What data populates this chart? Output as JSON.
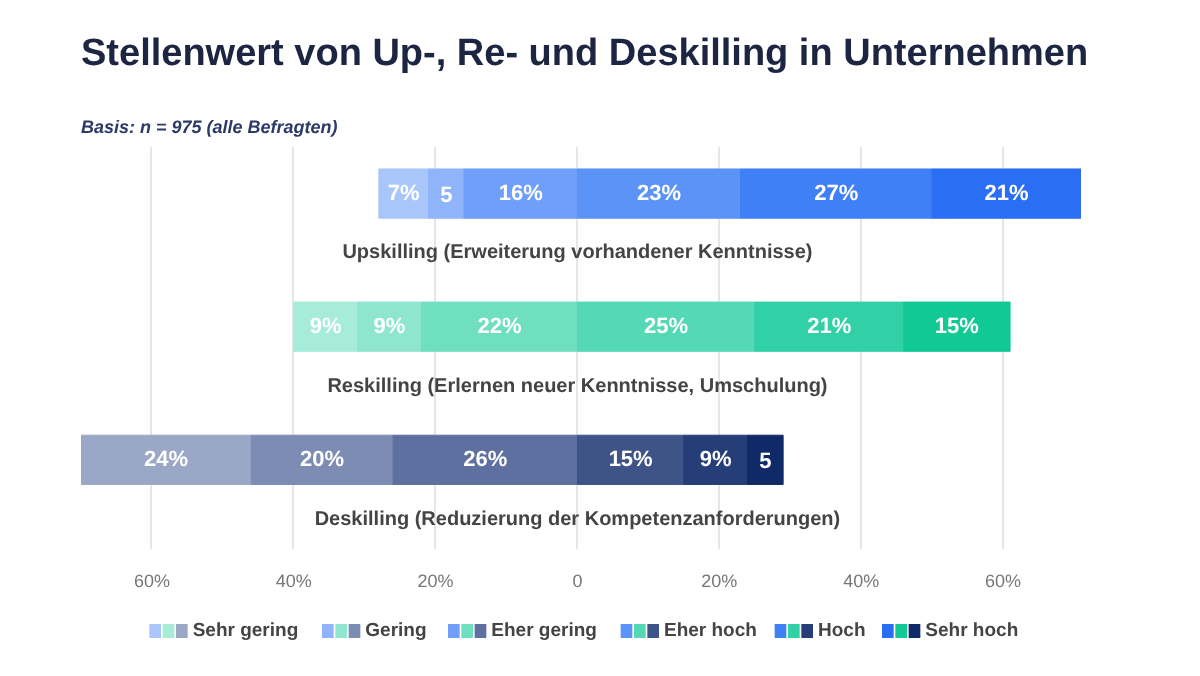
{
  "chart_data": {
    "type": "bar",
    "orientation": "horizontal",
    "title": "Stellenwert von Up-, Re- und Deskilling in Unternehmen",
    "annotations": [
      "Basis: n = 975 (alle Befragten)"
    ],
    "categories": [
      "Upskilling (Erweiterung vorhandener Kenntnisse)",
      "Reskilling (Erlernen neuer Kenntnisse, Umschulung)",
      "Deskilling (Reduzierung der Kompetenzanforderungen)"
    ],
    "xlim": [
      -70,
      71
    ],
    "xticks": [
      {
        "value": -60,
        "label": "60%"
      },
      {
        "value": -40,
        "label": "40%"
      },
      {
        "value": -20,
        "label": "20%"
      },
      0,
      {
        "value": 20,
        "label": "20%"
      },
      {
        "value": 40,
        "label": "40%"
      },
      {
        "value": 60,
        "label": "60%"
      }
    ],
    "grid": "x",
    "legend": "bottom",
    "series": [
      {
        "name": "Sehr gering",
        "colors": [
          "#a9c6fb",
          "#a6ecd9",
          "#9ba7c6"
        ],
        "values": [
          7,
          9,
          24
        ],
        "base": [
          -28,
          -40,
          -70
        ],
        "value_labels": [
          "7%",
          "9%",
          "24%"
        ]
      },
      {
        "name": "Gering",
        "colors": [
          "#8fb4fa",
          "#8ee6cf",
          "#7d8cb3"
        ],
        "values": [
          5,
          9,
          20
        ],
        "base": [
          -21,
          -31,
          -46
        ],
        "value_labels": [
          "5",
          "9%",
          "20%"
        ]
      },
      {
        "name": "Eher gering",
        "colors": [
          "#6f9ff8",
          "#6fdfc0",
          "#5d70a0"
        ],
        "values": [
          16,
          22,
          26
        ],
        "base": [
          -16,
          -22,
          -26
        ],
        "value_labels": [
          "16%",
          "22%",
          "26%"
        ]
      },
      {
        "name": "Eher hoch",
        "colors": [
          "#5b93f7",
          "#55d8b6",
          "#3e5488"
        ],
        "values": [
          23,
          25,
          15
        ],
        "base": [
          0,
          0,
          0
        ],
        "value_labels": [
          "23%",
          "25%",
          "15%"
        ]
      },
      {
        "name": "Hoch",
        "colors": [
          "#3f80f6",
          "#32d0a6",
          "#253e78"
        ],
        "values": [
          27,
          21,
          9
        ],
        "base": [
          23,
          25,
          15
        ],
        "value_labels": [
          "27%",
          "21%",
          "9%"
        ]
      },
      {
        "name": "Sehr hoch",
        "colors": [
          "#2a6ef3",
          "#10c994",
          "#0f2a66"
        ],
        "values": [
          21,
          15,
          5
        ],
        "base": [
          50,
          46,
          24
        ],
        "value_labels": [
          "21%",
          "15%",
          "5"
        ]
      }
    ]
  }
}
